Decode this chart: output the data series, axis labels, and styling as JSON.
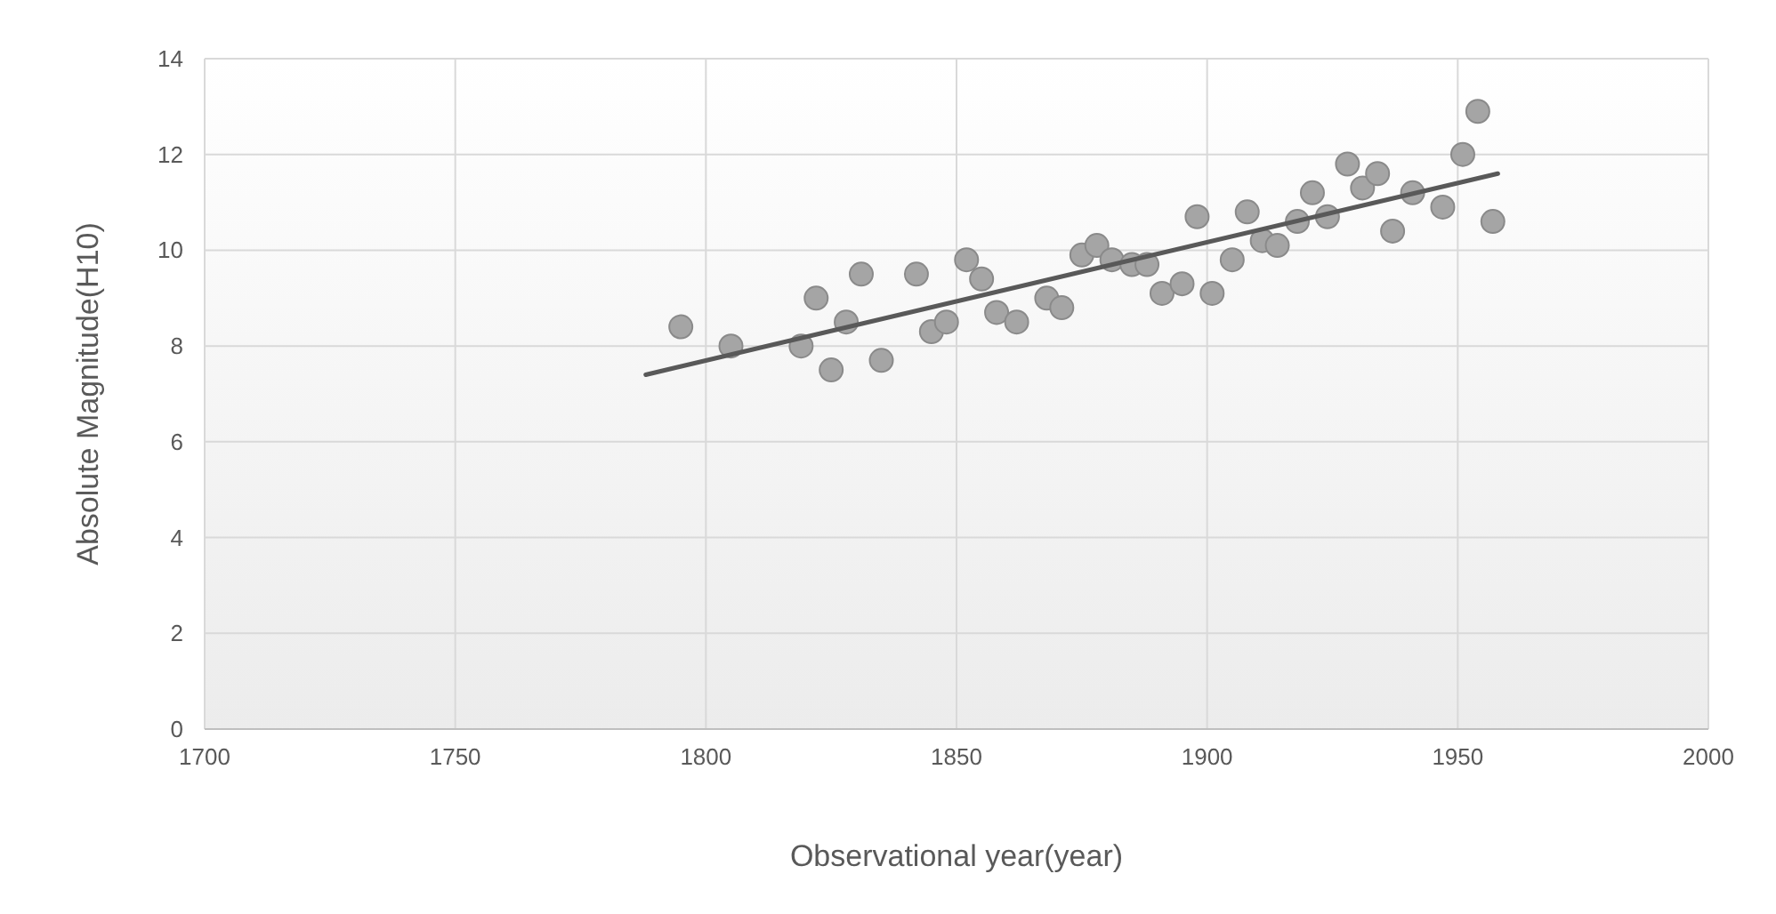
{
  "chart_data": {
    "type": "scatter",
    "xlabel": "Observational year(year)",
    "ylabel": "Absolute Magnitude(H10)",
    "xlim": [
      1700,
      2000
    ],
    "xticks": [
      1700,
      1750,
      1800,
      1850,
      1900,
      1950,
      2000
    ],
    "ylim": [
      0,
      14
    ],
    "yticks": [
      0,
      2,
      4,
      6,
      8,
      10,
      12,
      14
    ],
    "grid": true,
    "series": [
      {
        "marker": "circle",
        "color": "#a5a5a5",
        "x": [
          1795,
          1805,
          1819,
          1822,
          1825,
          1828,
          1831,
          1835,
          1842,
          1845,
          1848,
          1852,
          1855,
          1858,
          1862,
          1868,
          1871,
          1875,
          1878,
          1881,
          1885,
          1888,
          1891,
          1895,
          1898,
          1901,
          1905,
          1908,
          1911,
          1914,
          1918,
          1921,
          1924,
          1928,
          1931,
          1934,
          1937,
          1941,
          1947,
          1951,
          1954,
          1957
        ],
        "values": [
          8.4,
          8.0,
          8.0,
          9.0,
          7.5,
          8.5,
          9.5,
          7.7,
          9.5,
          8.3,
          8.5,
          9.8,
          9.4,
          8.7,
          8.5,
          9.0,
          8.8,
          9.9,
          10.1,
          9.8,
          9.7,
          9.7,
          9.1,
          9.3,
          10.7,
          9.1,
          9.8,
          10.8,
          10.2,
          10.1,
          10.6,
          11.2,
          10.7,
          11.8,
          11.3,
          11.6,
          10.4,
          11.2,
          10.9,
          12.0,
          12.9,
          10.6
        ]
      },
      {
        "type": "line",
        "color": "#595959",
        "x": [
          1788,
          1958
        ],
        "values": [
          7.4,
          11.6
        ]
      }
    ]
  }
}
